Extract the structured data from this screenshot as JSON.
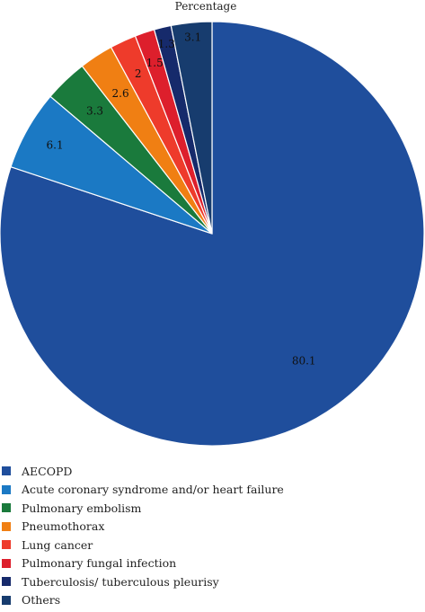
{
  "chart_data": {
    "type": "pie",
    "title": "Percentage",
    "categories": [
      "AECOPD",
      "Acute coronary syndrome and/or heart failure",
      "Pulmonary embolism",
      "Pneumothorax",
      "Lung cancer",
      "Pulmonary fungal infection",
      "Tuberculosis/ tuberculous pleurisy",
      "Others"
    ],
    "values": [
      80.1,
      6.1,
      3.3,
      2.6,
      2,
      1.5,
      1.3,
      3.1
    ],
    "data_labels": [
      "80.1",
      "6.1",
      "3.3",
      "2.6",
      "2",
      "1.5",
      "1.3",
      "3.1"
    ],
    "colors": [
      "#1f4e9c",
      "#1b79c4",
      "#1a7a3c",
      "#f07f13",
      "#ee3b2b",
      "#dd1f2c",
      "#162a6b",
      "#173c6e"
    ],
    "legend_position": "bottom-left"
  }
}
